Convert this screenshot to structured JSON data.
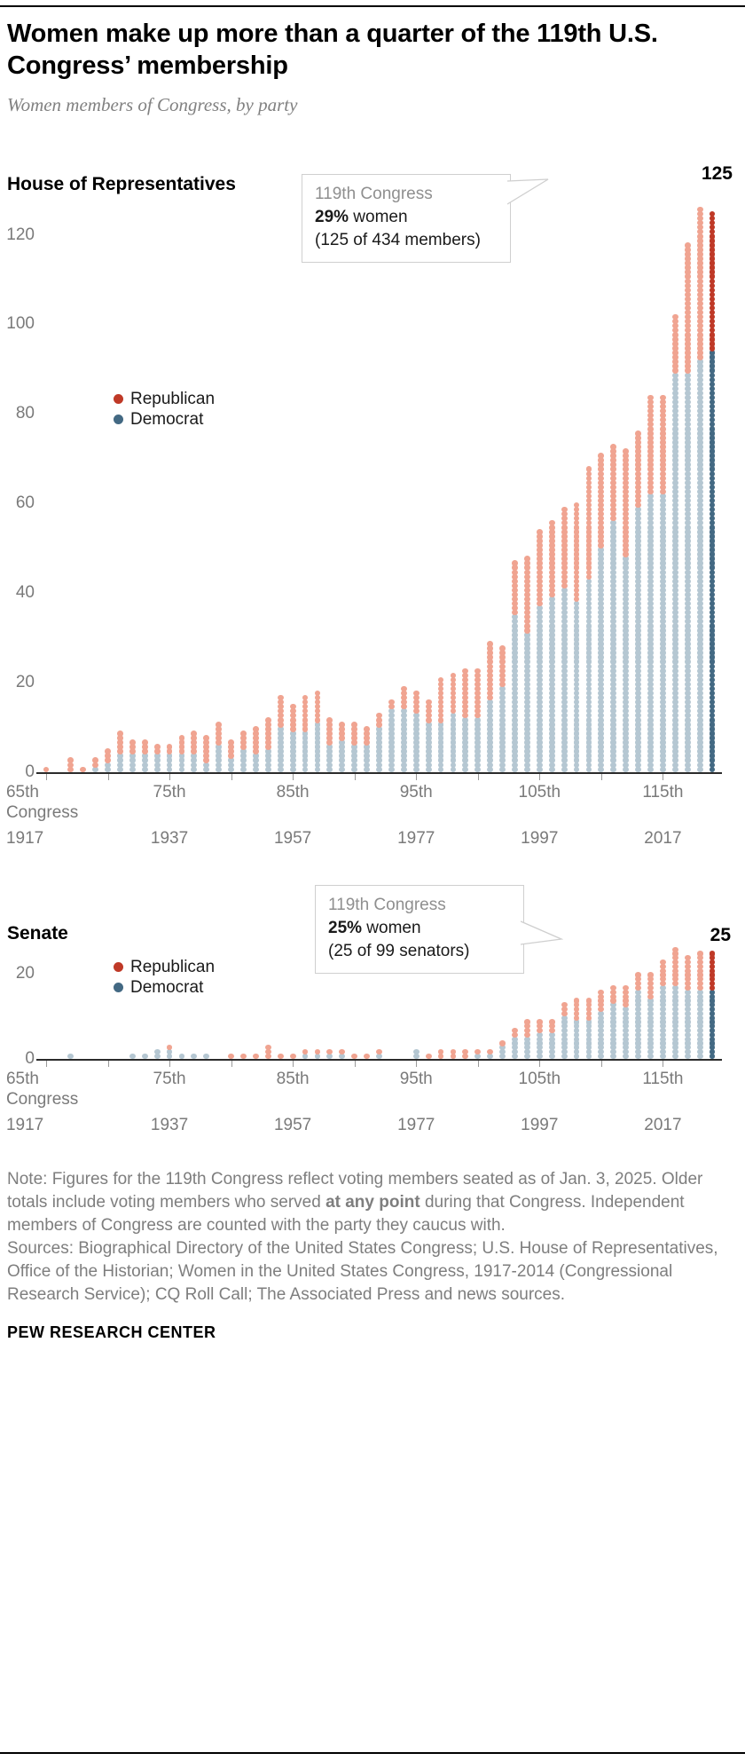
{
  "header": {
    "title": "Women make up more than a quarter of the 119th U.S. Congress’ membership",
    "subtitle": "Women members of Congress, by party"
  },
  "legend": {
    "republican": "Republican",
    "democrat": "Democrat"
  },
  "colors": {
    "republican": "#bf3927",
    "democrat": "#436983",
    "republican_faded": "#f0a491",
    "democrat_faded": "#b5c7d2",
    "axis": "#2b2b2b",
    "muted_text": "#7e7e7e"
  },
  "house": {
    "label": "House of Representatives",
    "end_label": "125",
    "callout": {
      "line1": "119th Congress",
      "pct": "29%",
      "pct_rest": " women",
      "detail": "(125 of 434 members)"
    }
  },
  "senate": {
    "label": "Senate",
    "end_label": "25",
    "callout": {
      "line1": "119th Congress",
      "pct": "25%",
      "pct_rest": " women",
      "detail": "(25 of 99 senators)"
    }
  },
  "xaxis": {
    "major_labels": [
      "65th",
      "75th",
      "85th",
      "95th",
      "105th",
      "115th"
    ],
    "first_label_sub": "Congress",
    "years": [
      "1917",
      "1937",
      "1957",
      "1977",
      "1997",
      "2017"
    ]
  },
  "chart_data": [
    {
      "type": "bar",
      "subtype": "stacked-dot-column",
      "title": "House of Representatives",
      "unit": "women members (1 dot = 1 woman)",
      "x_start": 65,
      "x_end": 119,
      "categories": [
        65,
        66,
        67,
        68,
        69,
        70,
        71,
        72,
        73,
        74,
        75,
        76,
        77,
        78,
        79,
        80,
        81,
        82,
        83,
        84,
        85,
        86,
        87,
        88,
        89,
        90,
        91,
        92,
        93,
        94,
        95,
        96,
        97,
        98,
        99,
        100,
        101,
        102,
        103,
        104,
        105,
        106,
        107,
        108,
        109,
        110,
        111,
        112,
        113,
        114,
        115,
        116,
        117,
        118,
        119
      ],
      "series": [
        {
          "name": "Democrat",
          "color": "#436983",
          "values": [
            0,
            0,
            0,
            0,
            1,
            2,
            4,
            4,
            4,
            4,
            4,
            4,
            4,
            2,
            6,
            3,
            5,
            4,
            5,
            10,
            9,
            9,
            11,
            6,
            7,
            6,
            6,
            10,
            14,
            14,
            13,
            11,
            11,
            13,
            12,
            12,
            16,
            19,
            35,
            31,
            37,
            39,
            41,
            38,
            43,
            50,
            56,
            48,
            59,
            62,
            62,
            89,
            89,
            92,
            94
          ]
        },
        {
          "name": "Republican",
          "color": "#bf3927",
          "values": [
            1,
            0,
            3,
            1,
            2,
            3,
            5,
            3,
            3,
            2,
            2,
            4,
            5,
            6,
            5,
            4,
            4,
            6,
            7,
            7,
            6,
            8,
            7,
            6,
            4,
            5,
            4,
            3,
            2,
            5,
            5,
            5,
            10,
            9,
            11,
            11,
            13,
            9,
            12,
            17,
            17,
            17,
            18,
            22,
            25,
            21,
            17,
            24,
            17,
            22,
            22,
            13,
            29,
            34,
            31
          ]
        }
      ],
      "ylim": [
        0,
        130
      ],
      "yticks": [
        0,
        20,
        40,
        60,
        80,
        100,
        120
      ],
      "xticks_major": [
        65,
        75,
        85,
        95,
        105,
        115
      ],
      "xtick_years": [
        "1917",
        "1937",
        "1957",
        "1977",
        "1997",
        "2017"
      ],
      "legend_position": "inside-left",
      "highlight_last_column": true,
      "annotation": "119th Congress: 29% women (125 of 434 members)",
      "end_value": 125
    },
    {
      "type": "bar",
      "subtype": "stacked-dot-column",
      "title": "Senate",
      "unit": "women members (1 dot = 1 woman)",
      "x_start": 65,
      "x_end": 119,
      "categories": [
        65,
        66,
        67,
        68,
        69,
        70,
        71,
        72,
        73,
        74,
        75,
        76,
        77,
        78,
        79,
        80,
        81,
        82,
        83,
        84,
        85,
        86,
        87,
        88,
        89,
        90,
        91,
        92,
        93,
        94,
        95,
        96,
        97,
        98,
        99,
        100,
        101,
        102,
        103,
        104,
        105,
        106,
        107,
        108,
        109,
        110,
        111,
        112,
        113,
        114,
        115,
        116,
        117,
        118,
        119
      ],
      "series": [
        {
          "name": "Democrat",
          "color": "#436983",
          "values": [
            0,
            0,
            1,
            0,
            0,
            0,
            0,
            1,
            1,
            2,
            2,
            1,
            1,
            1,
            0,
            0,
            0,
            0,
            0,
            0,
            0,
            1,
            1,
            1,
            1,
            0,
            0,
            1,
            0,
            0,
            2,
            0,
            0,
            0,
            0,
            1,
            1,
            3,
            5,
            5,
            6,
            6,
            10,
            9,
            9,
            11,
            13,
            12,
            16,
            14,
            17,
            17,
            16,
            16,
            16
          ]
        },
        {
          "name": "Republican",
          "color": "#bf3927",
          "values": [
            0,
            0,
            0,
            0,
            0,
            0,
            0,
            0,
            0,
            0,
            1,
            0,
            0,
            0,
            0,
            1,
            1,
            1,
            3,
            1,
            1,
            1,
            1,
            1,
            1,
            1,
            1,
            1,
            0,
            0,
            0,
            1,
            2,
            2,
            2,
            1,
            1,
            1,
            2,
            4,
            3,
            3,
            3,
            5,
            5,
            5,
            4,
            5,
            4,
            6,
            6,
            9,
            8,
            9,
            9
          ]
        }
      ],
      "ylim": [
        0,
        26
      ],
      "yticks": [
        0,
        20
      ],
      "xticks_major": [
        65,
        75,
        85,
        95,
        105,
        115
      ],
      "xtick_years": [
        "1917",
        "1937",
        "1957",
        "1977",
        "1997",
        "2017"
      ],
      "legend_position": "inside-left",
      "highlight_last_column": true,
      "annotation": "119th Congress: 25% women (25 of 99 senators)",
      "end_value": 25
    }
  ],
  "footer": {
    "note_before": "Note: Figures for the 119th Congress reflect voting members seated as of Jan. 3, 2025. Older totals include voting members who served ",
    "note_bold": "at any point",
    "note_after": " during that Congress. Independent members of Congress are counted with the party they caucus with.",
    "sources": "Sources: Biographical Directory of the United States Congress; U.S. House of Representatives, Office of the Historian; Women in the United States Congress, 1917-2014 (Congressional Research Service); CQ Roll Call; The Associated Press and news sources.",
    "brand": "PEW RESEARCH CENTER"
  }
}
